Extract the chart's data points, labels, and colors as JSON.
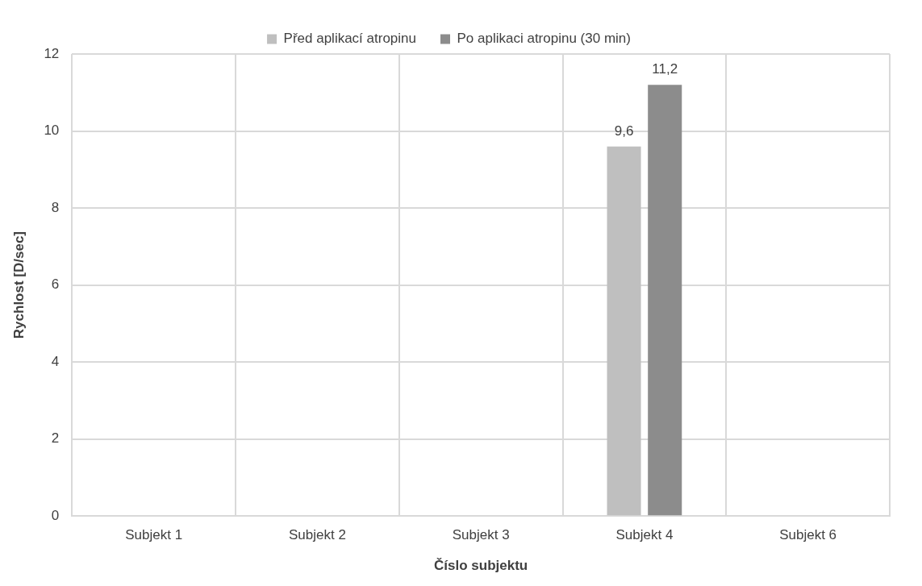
{
  "chart_data": {
    "type": "bar",
    "xlabel": "Číslo subjektu",
    "ylabel": "Rychlost [D/sec]",
    "categories": [
      "Subjekt 1",
      "Subjekt 2",
      "Subjekt 3",
      "Subjekt 4",
      "Subjekt 6"
    ],
    "series": [
      {
        "name": "Před aplikací atropinu",
        "color": "#bfbfbf",
        "values": [
          null,
          null,
          null,
          9.6,
          null
        ],
        "value_labels": [
          null,
          null,
          null,
          "9,6",
          null
        ]
      },
      {
        "name": "Po aplikaci atropinu (30 min)",
        "color": "#8c8c8c",
        "values": [
          null,
          null,
          null,
          11.2,
          null
        ],
        "value_labels": [
          null,
          null,
          null,
          "11,2",
          null
        ]
      }
    ],
    "ylim": [
      0,
      12
    ],
    "yticks": [
      0,
      2,
      4,
      6,
      8,
      10,
      12
    ],
    "grid": true,
    "legend": "top"
  }
}
